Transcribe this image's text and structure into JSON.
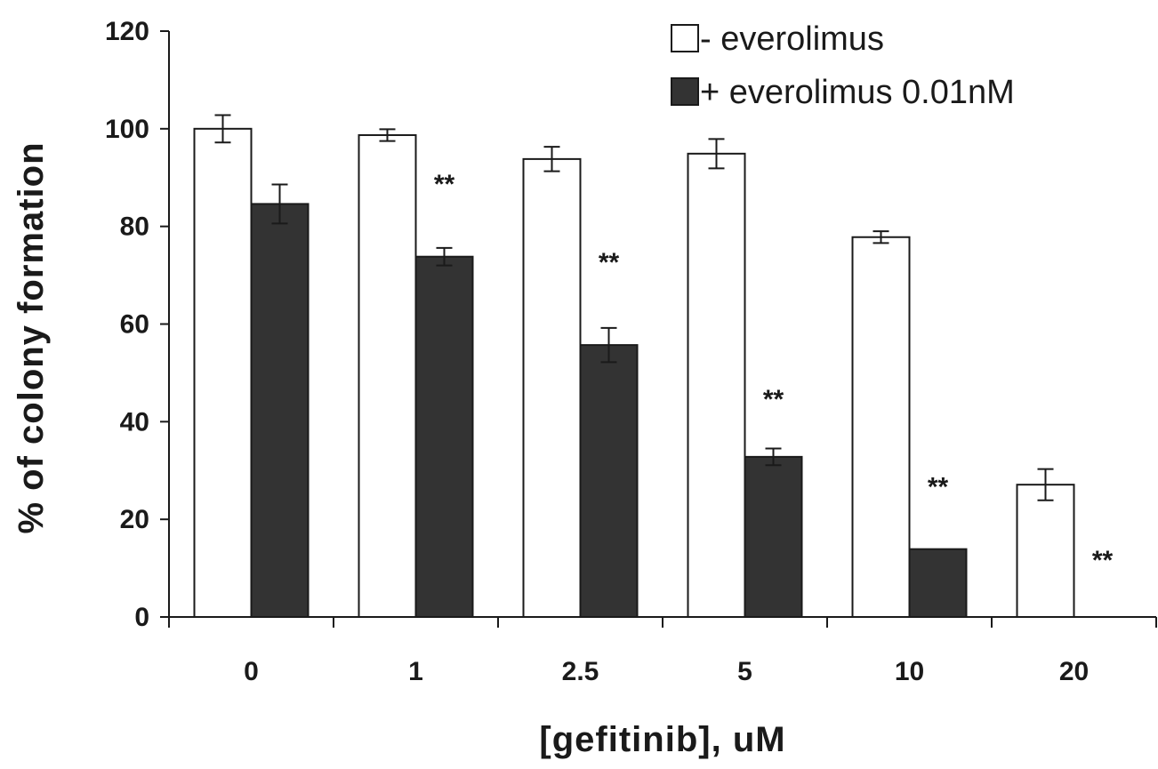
{
  "chart_data": {
    "type": "bar",
    "xlabel": "[gefitinib], uM",
    "ylabel": "% of colony formation",
    "ylim": [
      0,
      120
    ],
    "yticks": [
      0,
      20,
      40,
      60,
      80,
      100,
      120
    ],
    "categories": [
      "0",
      "1",
      "2.5",
      "5",
      "10",
      "20"
    ],
    "legend_position": "top-right",
    "series": [
      {
        "name": "- everolimus",
        "color": "#ffffff",
        "values": [
          100,
          98.7,
          93.8,
          94.9,
          77.8,
          27.1
        ],
        "errors": [
          2.8,
          1.2,
          2.5,
          3.0,
          1.2,
          3.2
        ]
      },
      {
        "name": "+ everolimus 0.01nM",
        "color": "#333333",
        "values": [
          84.6,
          73.8,
          55.7,
          32.8,
          13.9,
          0
        ],
        "errors": [
          4.0,
          1.8,
          3.5,
          1.7,
          0,
          0
        ]
      }
    ],
    "annotations": [
      {
        "category": "1",
        "text": "**",
        "y": 89
      },
      {
        "category": "2.5",
        "text": "**",
        "y": 73
      },
      {
        "category": "5",
        "text": "**",
        "y": 45
      },
      {
        "category": "10",
        "text": "**",
        "y": 27
      },
      {
        "category": "20",
        "text": "**",
        "y": 12
      }
    ]
  }
}
